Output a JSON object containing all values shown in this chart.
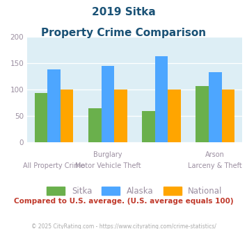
{
  "title_line1": "2019 Sitka",
  "title_line2": "Property Crime Comparison",
  "categories": [
    "All Property Crime",
    "Burglary",
    "Motor Vehicle Theft",
    "Larceny & Theft"
  ],
  "top_labels": [
    "",
    "Burglary",
    "",
    "Arson"
  ],
  "bottom_labels": [
    "All Property Crime",
    "Motor Vehicle Theft",
    "",
    "Larceny & Theft"
  ],
  "sitka": [
    93,
    64,
    59,
    106
  ],
  "alaska": [
    138,
    144,
    163,
    133
  ],
  "national": [
    100,
    100,
    100,
    100
  ],
  "sitka_color": "#6ab04c",
  "alaska_color": "#4da6ff",
  "national_color": "#ffa500",
  "bg_color": "#ddeef5",
  "ylim": [
    0,
    200
  ],
  "yticks": [
    0,
    50,
    100,
    150,
    200
  ],
  "footnote": "Compared to U.S. average. (U.S. average equals 100)",
  "copyright": "© 2025 CityRating.com - https://www.cityrating.com/crime-statistics/",
  "title_color": "#1a5276",
  "label_color": "#9b8ea0",
  "footnote_color": "#c0392b",
  "copyright_color": "#aaaaaa"
}
